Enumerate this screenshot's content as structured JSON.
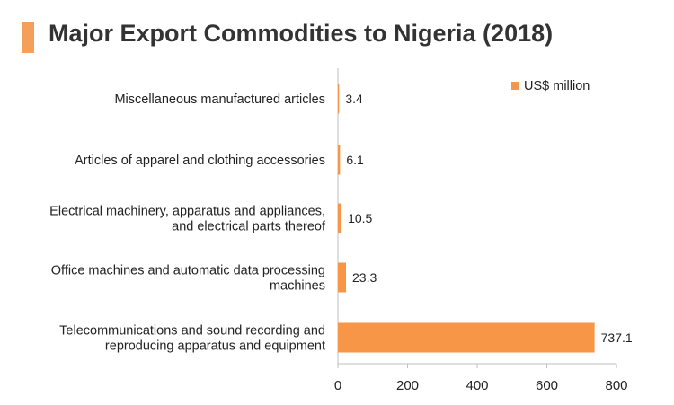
{
  "header": {
    "title": "Major Export Commodities to Nigeria (2018)"
  },
  "colors": {
    "accent": "#f5a05a",
    "bar": "#f79646",
    "axis": "#bfbfbf",
    "text": "#222222"
  },
  "chart_data": {
    "type": "bar",
    "orientation": "horizontal",
    "title": "Major Export Commodities to Nigeria (2018)",
    "categories": [
      [
        "Miscellaneous manufactured articles"
      ],
      [
        "Articles of apparel and clothing accessories"
      ],
      [
        "Electrical machinery, apparatus and appliances,",
        "and electrical parts thereof"
      ],
      [
        "Office machines and automatic data processing",
        "machines"
      ],
      [
        "Telecommunications and sound recording and",
        "reproducing apparatus and equipment"
      ]
    ],
    "series": [
      {
        "name": "US$ million",
        "values": [
          3.4,
          6.1,
          10.5,
          23.3,
          737.1
        ],
        "labels": [
          "3.4",
          "6.1",
          "10.5",
          "23.3",
          "737.1"
        ]
      }
    ],
    "xlim": [
      0,
      800
    ],
    "xticks": [
      "0",
      "200",
      "400",
      "600",
      "800"
    ],
    "grid": false,
    "legend": "top-right"
  }
}
